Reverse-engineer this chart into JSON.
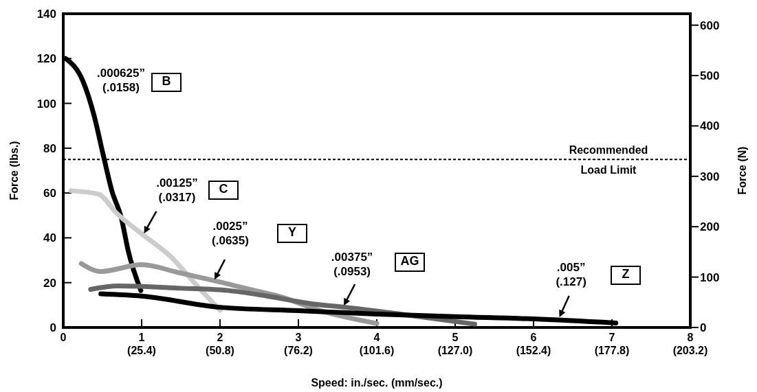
{
  "chart_data": {
    "type": "line",
    "xlabel": "Speed:  in./sec. (mm/sec.)",
    "ylabel": "Force (lbs.)",
    "y2label": "Force (N)",
    "xlim": [
      0,
      8
    ],
    "xticks": [
      0,
      1,
      2,
      3,
      4,
      5,
      6,
      7,
      8
    ],
    "x2lim": [
      0,
      203.2
    ],
    "x2ticks": [
      {
        "value": 25.4,
        "label": "(25.4)"
      },
      {
        "value": 50.8,
        "label": "(50.8)"
      },
      {
        "value": 76.2,
        "label": "(76.2)"
      },
      {
        "value": 101.6,
        "label": "(101.6)"
      },
      {
        "value": 127,
        "label": "(127.0)"
      },
      {
        "value": 152.4,
        "label": "(152.4)"
      },
      {
        "value": 177.8,
        "label": "(177.8)"
      },
      {
        "value": 203.2,
        "label": "(203.2)"
      }
    ],
    "ylim": [
      0,
      140
    ],
    "yticks": [
      0,
      20,
      40,
      60,
      80,
      100,
      120,
      140
    ],
    "y2lim": [
      0,
      622.7
    ],
    "y2ticks": [
      0,
      100,
      200,
      300,
      400,
      500,
      600
    ],
    "grid": false,
    "marker": "none",
    "line_style": "solid",
    "ref_lines": [
      {
        "axis": "y",
        "value": 75,
        "label": "Recommended Load Limit",
        "line_style": "dotted",
        "color": "#000000"
      }
    ],
    "annotations": [
      ".000625” (.0158)",
      {
        "text": ".00125” (.0317)",
        "x": 1.03,
        "y": 42
      },
      {
        "text": ".0025” (.0635)",
        "x": 1.93,
        "y": 21.4
      },
      {
        "text": ".00375” (.0953)",
        "x": 3.58,
        "y": 9.8
      },
      {
        "text": ".005” (.127)",
        "x": 6.33,
        "y": 4.6
      },
      "B",
      "C",
      "Y",
      "AG",
      "Z"
    ],
    "series": [
      {
        "color": "#000000",
        "x": [
          0.03,
          0.25,
          0.39,
          0.51,
          0.62,
          0.74,
          0.83,
          0.99
        ],
        "values": [
          120,
          110,
          95,
          77,
          61,
          49,
          34,
          16.5
        ]
      },
      {
        "color": "#cccccc",
        "x": [
          0.1,
          0.45,
          0.68,
          1.03,
          1.36,
          1.71,
          2.0
        ],
        "values": [
          61,
          59.5,
          51,
          41,
          32,
          18.5,
          7.7
        ]
      },
      {
        "color": "#999999",
        "x": [
          0.23,
          0.48,
          1.0,
          1.47,
          1.91,
          2.5,
          2.7,
          3.33,
          4.0
        ],
        "values": [
          28.5,
          25,
          28,
          24.5,
          21,
          16,
          14.4,
          7,
          1.8
        ]
      },
      {
        "color": "#666666",
        "x": [
          0.35,
          0.7,
          1.5,
          2.1,
          2.6,
          3.2,
          3.6,
          4.4,
          5.25
        ],
        "values": [
          17,
          18.5,
          17.5,
          16.5,
          14,
          10.4,
          9,
          5.5,
          1.5
        ]
      },
      {
        "color": "#000000",
        "x": [
          0.48,
          1,
          2,
          3,
          4,
          5,
          6,
          7.05
        ],
        "values": [
          15,
          14,
          9,
          7.5,
          6,
          4.8,
          3.8,
          2
        ]
      }
    ]
  }
}
